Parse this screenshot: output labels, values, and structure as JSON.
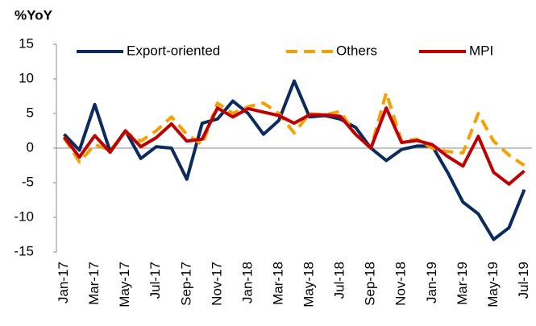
{
  "chart_data": {
    "type": "line",
    "title": "%YoY",
    "categories": [
      "Jan-17",
      null,
      "Mar-17",
      null,
      "May-17",
      null,
      "Jul-17",
      null,
      "Sep-17",
      null,
      "Nov-17",
      null,
      "Jan-18",
      null,
      "Mar-18",
      null,
      "May-18",
      null,
      "Jul-18",
      null,
      "Sep-18",
      null,
      "Nov-18",
      null,
      "Jan-19",
      null,
      "Mar-19",
      null,
      "May-19",
      null,
      "Jul-19"
    ],
    "series": [
      {
        "name": "Export-oriented",
        "color": "#0b2a5e",
        "dash": false,
        "values": [
          2,
          -0.3,
          6.3,
          -0.5,
          2.5,
          -1.5,
          0.2,
          0,
          -4.5,
          3.6,
          4.2,
          6.8,
          5,
          2,
          4,
          9.7,
          4.5,
          4.7,
          4.2,
          3,
          0,
          -1.8,
          -0.2,
          0.3,
          0.3,
          -3.5,
          -7.8,
          -9.5,
          -13.2,
          -11.5,
          -6
        ]
      },
      {
        "name": "Others",
        "color": "#f5a000",
        "dash": true,
        "values": [
          1.5,
          -2,
          0.5,
          -0.3,
          2.3,
          1,
          2.5,
          4.5,
          2,
          0.5,
          6.5,
          5,
          6,
          6.5,
          5,
          2.2,
          5,
          4.8,
          5.3,
          2,
          0,
          8,
          1,
          1.3,
          0,
          -0.5,
          -0.7,
          5,
          1,
          -1,
          -2.5
        ]
      },
      {
        "name": "MPI",
        "color": "#c00000",
        "dash": false,
        "values": [
          1.6,
          -1.3,
          1.8,
          -0.6,
          2.5,
          0.2,
          1.5,
          3.5,
          1,
          1.3,
          5.8,
          4.5,
          5.7,
          5.2,
          4.7,
          3.6,
          4.8,
          4.8,
          4.6,
          2,
          0,
          5.8,
          0.8,
          1.1,
          0.5,
          -1.2,
          -2.6,
          1.7,
          -3.5,
          -5.2,
          -3.3
        ]
      }
    ],
    "ylim": [
      -15,
      15
    ],
    "yticks": [
      -15,
      -10,
      -5,
      0,
      5,
      10,
      15
    ],
    "grid": false,
    "legend": "top"
  }
}
